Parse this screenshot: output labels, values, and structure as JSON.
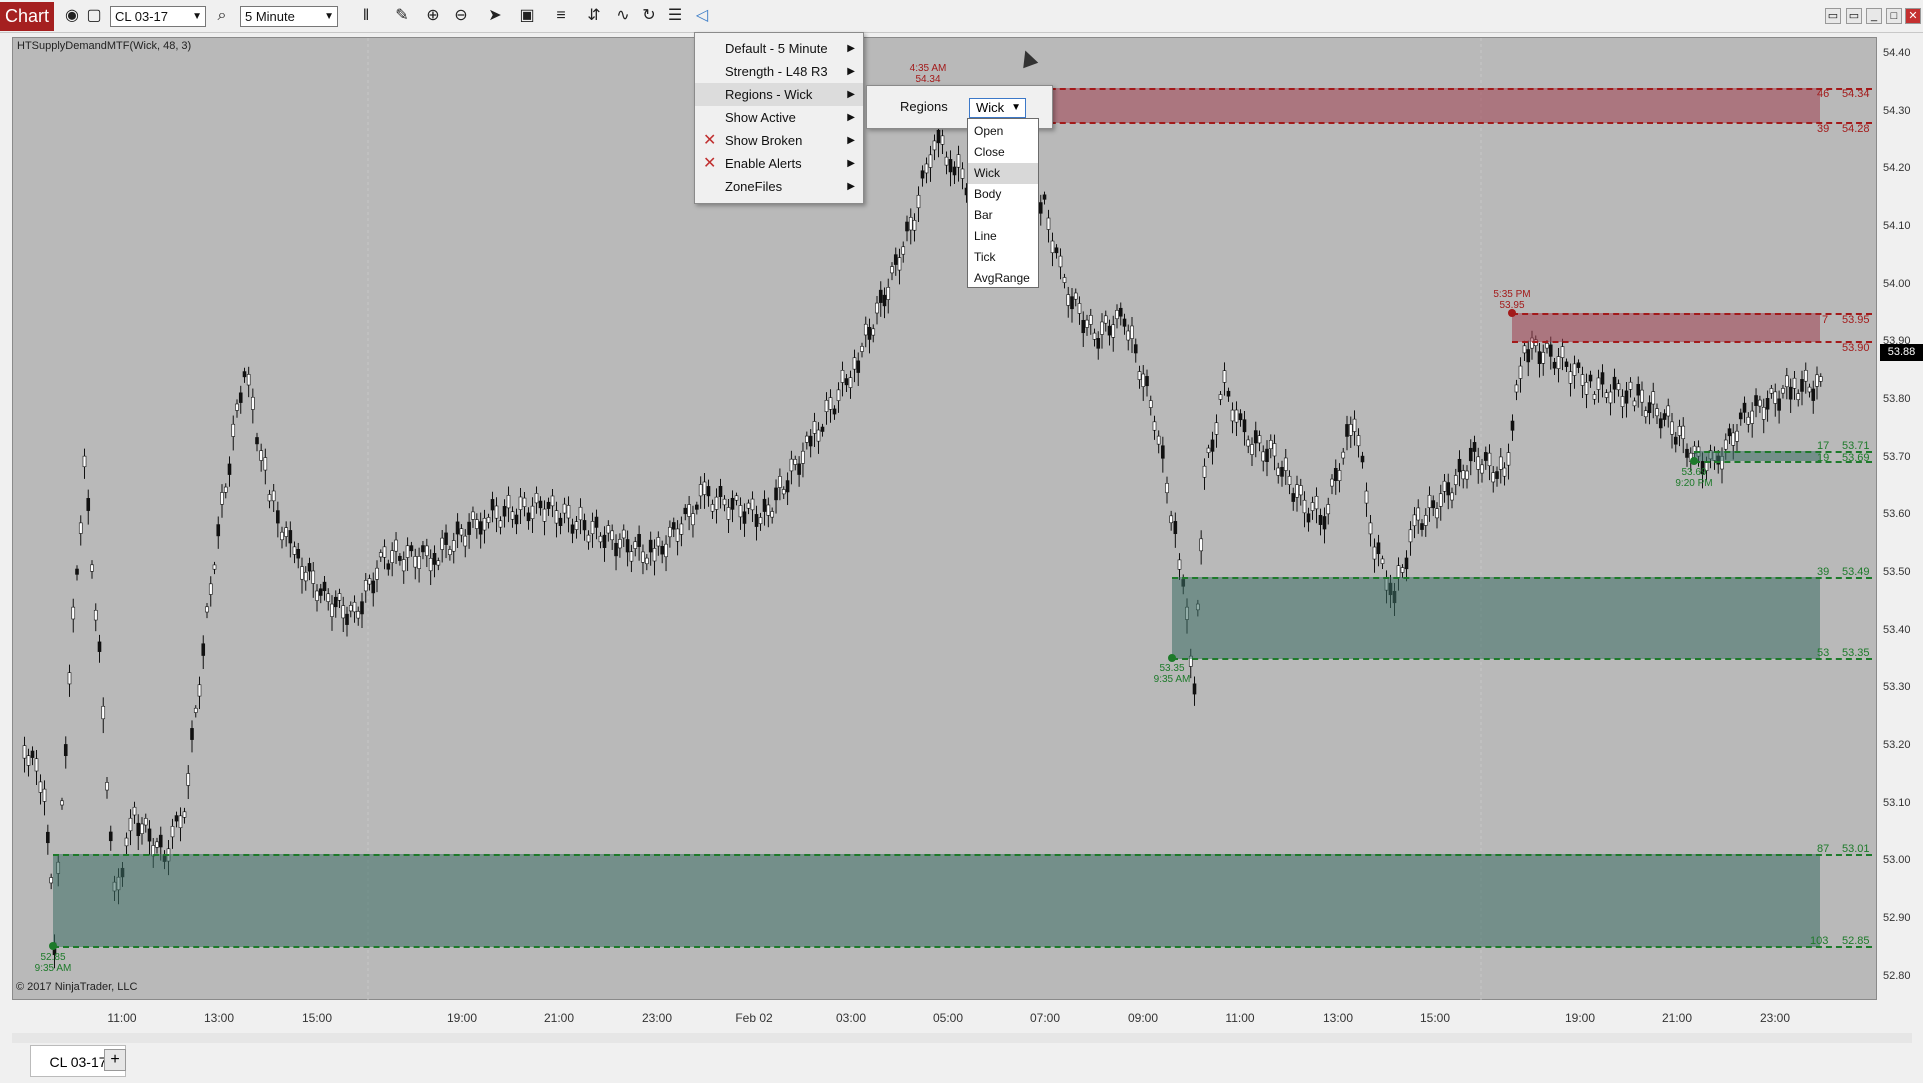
{
  "toolbar": {
    "chart_label": "Chart",
    "instrument": "CL 03-17",
    "interval": "5 Minute",
    "icons": [
      "camera-icon",
      "window-icon",
      "search-icon",
      "bars-icon",
      "pencil-icon",
      "zoom-in-icon",
      "zoom-out-icon",
      "pointer-icon",
      "data-box-icon",
      "chart-type-icon",
      "trade-icon",
      "indicator-icon",
      "refresh-icon",
      "list-icon",
      "share-icon"
    ]
  },
  "chart": {
    "indicator_label": "HTSupplyDemandMTF(Wick, 48, 3)",
    "copyright": "© 2017 NinjaTrader, LLC",
    "current_price": "53.88",
    "price_ticks": [
      "54.40",
      "54.30",
      "54.20",
      "54.10",
      "54.00",
      "53.90",
      "53.80",
      "53.70",
      "53.60",
      "53.50",
      "53.40",
      "53.30",
      "53.20",
      "53.10",
      "53.00",
      "52.90",
      "52.80"
    ],
    "time_ticks": [
      "11:00",
      "13:00",
      "15:00",
      "19:00",
      "21:00",
      "23:00",
      "Feb 02",
      "03:00",
      "05:00",
      "07:00",
      "09:00",
      "11:00",
      "13:00",
      "15:00",
      "19:00",
      "21:00",
      "23:00"
    ],
    "zones": {
      "supply_top": {
        "count_top": "46",
        "price_top": "54.34",
        "count_bottom": "39",
        "price_bottom": "54.28"
      },
      "supply_mid": {
        "count_top": "7",
        "price_top": "53.95",
        "price_bottom": "53.90"
      },
      "demand_small": {
        "count_top": "17",
        "price_top": "53.71",
        "count_bottom": "19",
        "price_bottom": "53.69"
      },
      "demand_mid": {
        "count_top": "39",
        "price_top": "53.49",
        "count_bottom": "53",
        "price_bottom": "53.35"
      },
      "demand_low": {
        "count_top": "87",
        "price_top": "53.01",
        "count_bottom": "103",
        "price_bottom": "52.85"
      }
    },
    "pivots": {
      "p1": {
        "time": "4:35 AM",
        "price": "54.34"
      },
      "p2": {
        "time": "5:35 PM",
        "price": "53.95"
      },
      "p3": {
        "price": "53.69",
        "time": "9:20 PM"
      },
      "p4": {
        "price": "53.35",
        "time": "9:35 AM"
      },
      "p5": {
        "price": "52.85",
        "time": "9:35 AM"
      }
    },
    "colors": {
      "supply": "#a31a1a",
      "demand": "#1d7a2a",
      "background": "#b9b9b9"
    }
  },
  "menu": {
    "items": [
      {
        "label": "Default  -  5 Minute"
      },
      {
        "label": "Strength  -  L48  R3"
      },
      {
        "label": "Regions  -  Wick"
      },
      {
        "label": "Show Active"
      },
      {
        "label": "Show Broken"
      },
      {
        "label": "Enable Alerts"
      },
      {
        "label": "ZoneFiles"
      }
    ],
    "submenu": {
      "label": "Regions",
      "value": "Wick"
    },
    "dropdown": [
      "Open",
      "Close",
      "Wick",
      "Body",
      "Bar",
      "Line",
      "Tick",
      "AvgRange"
    ],
    "dropdown_selected": "Wick"
  },
  "tabs": [
    {
      "label": "CL 03-17"
    }
  ],
  "add_tab": "+"
}
